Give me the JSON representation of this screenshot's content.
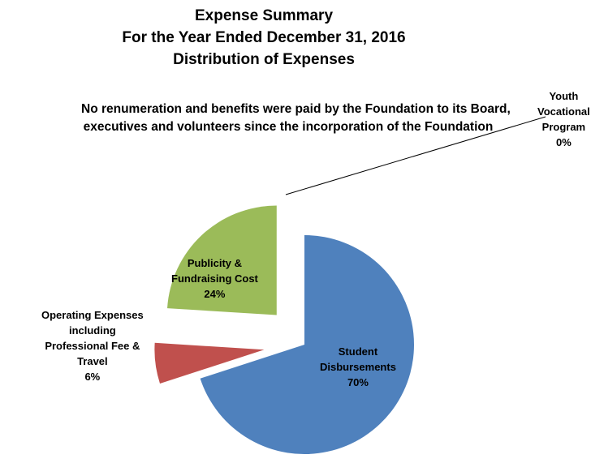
{
  "title": {
    "line1": "Expense Summary",
    "line2": "For the Year Ended December 31, 2016",
    "line3": "Distribution of Expenses"
  },
  "note": {
    "line1": "No renumeration and benefits were paid by the Foundation to its Board,",
    "line2": "executives and volunteers since the incorporation of the Foundation"
  },
  "chart_data": {
    "type": "pie",
    "title": "Expense Summary For the Year Ended December 31, 2016 Distribution of Expenses",
    "legend": "none",
    "series": [
      {
        "slices": [
          {
            "name": "Student Disbursements",
            "value": 70,
            "label": "70%",
            "color": "#4F81BD",
            "label_lines": [
              "Student",
              "Disbursements",
              "70%"
            ]
          },
          {
            "name": "Operating Expenses including Professional Fee & Travel",
            "value": 6,
            "label": "6%",
            "color": "#C0504D",
            "label_lines": [
              "Operating Expenses",
              "including",
              "Professional Fee &",
              "Travel",
              "6%"
            ]
          },
          {
            "name": "Publicity & Fundraising Cost",
            "value": 24,
            "label": "24%",
            "color": "#9BBB59",
            "label_lines": [
              "Publicity &",
              "Fundraising Cost",
              "24%"
            ]
          },
          {
            "name": "Youth Vocational Program",
            "value": 0,
            "label": "0%",
            "color": "#8064A2",
            "label_lines": [
              "Youth",
              "Vocational",
              "Program",
              "0%"
            ]
          }
        ]
      }
    ]
  }
}
